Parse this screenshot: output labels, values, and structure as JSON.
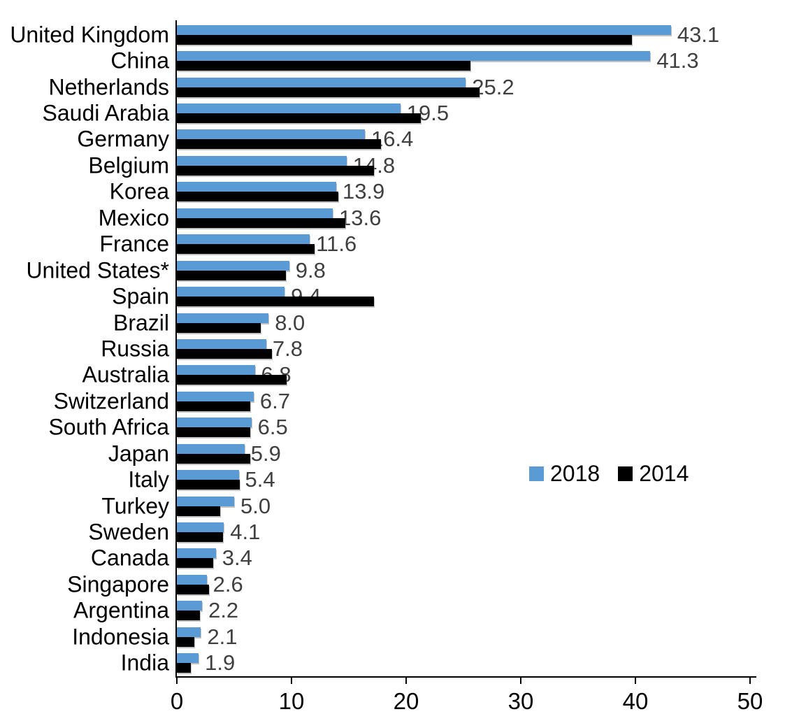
{
  "chart_data": {
    "type": "bar",
    "orientation": "horizontal",
    "title": "",
    "categories": [
      "United Kingdom",
      "China",
      "Netherlands",
      "Saudi Arabia",
      "Germany",
      "Belgium",
      "Korea",
      "Mexico",
      "France",
      "United States*",
      "Spain",
      "Brazil",
      "Russia",
      "Australia",
      "Switzerland",
      "South Africa",
      "Japan",
      "Italy",
      "Turkey",
      "Sweden",
      "Canada",
      "Singapore",
      "Argentina",
      "Indonesia",
      "India"
    ],
    "series": [
      {
        "name": "2018",
        "color": "#5B9BD5",
        "data_labels": true,
        "values": [
          43.1,
          41.3,
          25.2,
          19.5,
          16.4,
          14.8,
          13.9,
          13.6,
          11.6,
          9.8,
          9.4,
          8.0,
          7.8,
          6.8,
          6.7,
          6.5,
          5.9,
          5.4,
          5.0,
          4.1,
          3.4,
          2.6,
          2.2,
          2.1,
          1.9
        ]
      },
      {
        "name": "2014",
        "color": "#000000",
        "data_labels": false,
        "values": [
          39.7,
          25.6,
          26.4,
          21.3,
          17.8,
          17.2,
          14.1,
          14.7,
          12.0,
          9.5,
          17.2,
          7.3,
          8.3,
          9.6,
          6.4,
          6.4,
          6.4,
          5.5,
          3.8,
          4.0,
          3.2,
          2.8,
          2.0,
          1.5,
          1.2
        ]
      }
    ],
    "xlim": [
      0,
      50
    ],
    "x_ticks": [
      0,
      10,
      20,
      30,
      40,
      50
    ],
    "grid": false,
    "legend": {
      "entries": [
        "2018",
        "2014"
      ],
      "position": "center-right"
    },
    "value_label_color": "#404040",
    "axis_color": "#000000",
    "background": "#FFFFFF"
  }
}
